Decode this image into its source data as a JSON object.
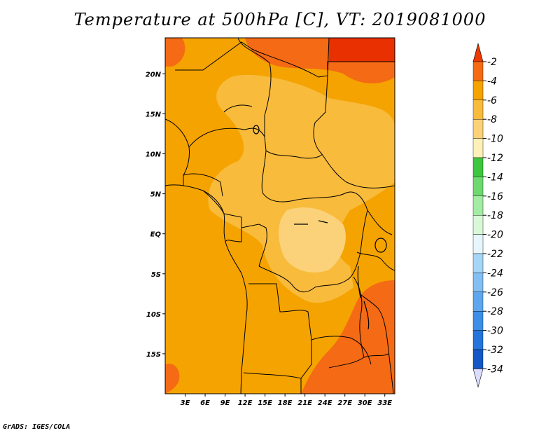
{
  "map": {
    "title": "Temperature at 500hPa [C], VT: 2019081000",
    "credit": "GrADS: IGES/COLA",
    "lat_range": [
      -20,
      24.5
    ],
    "lon_range": [
      0,
      34.5
    ],
    "lat_labels": [
      {
        "value": 20,
        "text": "20N"
      },
      {
        "value": 15,
        "text": "15N"
      },
      {
        "value": 10,
        "text": "10N"
      },
      {
        "value": 5,
        "text": "5N"
      },
      {
        "value": 0,
        "text": "EQ"
      },
      {
        "value": -5,
        "text": "5S"
      },
      {
        "value": -10,
        "text": "10S"
      },
      {
        "value": -15,
        "text": "15S"
      }
    ],
    "lon_labels": [
      {
        "value": 3,
        "text": "3E"
      },
      {
        "value": 6,
        "text": "6E"
      },
      {
        "value": 9,
        "text": "9E"
      },
      {
        "value": 12,
        "text": "12E"
      },
      {
        "value": 15,
        "text": "15E"
      },
      {
        "value": 18,
        "text": "18E"
      },
      {
        "value": 21,
        "text": "21E"
      },
      {
        "value": 24,
        "text": "24E"
      },
      {
        "value": 27,
        "text": "27E"
      },
      {
        "value": 30,
        "text": "30E"
      },
      {
        "value": 33,
        "text": "33E"
      }
    ],
    "field_colors": {
      "background": "#f5a300",
      "warm_band": "#f56a14",
      "warmest": "#e83000",
      "cool": "#f8bb3c",
      "coolest": "#fbd27a"
    }
  },
  "colorbar": {
    "labels": [
      "-2",
      "-4",
      "-6",
      "-8",
      "-10",
      "-12",
      "-14",
      "-16",
      "-18",
      "-20",
      "-22",
      "-24",
      "-26",
      "-28",
      "-30",
      "-32",
      "-34"
    ],
    "colors": [
      "#ec3a00",
      "#f56a14",
      "#f5a300",
      "#f8bb3c",
      "#fbd27a",
      "#fdf0b8",
      "#3ec63e",
      "#6ed96e",
      "#a3eca3",
      "#d8f8d8",
      "#e6f6fb",
      "#a6d6f6",
      "#82bff3",
      "#5ea7ef",
      "#3c8ee9",
      "#2474dc",
      "#1457c6",
      "#0b3a98",
      "#0a1a6c"
    ],
    "top_tip_color": "#ec3a00",
    "bottom_tip_color": "#dcdcff"
  }
}
